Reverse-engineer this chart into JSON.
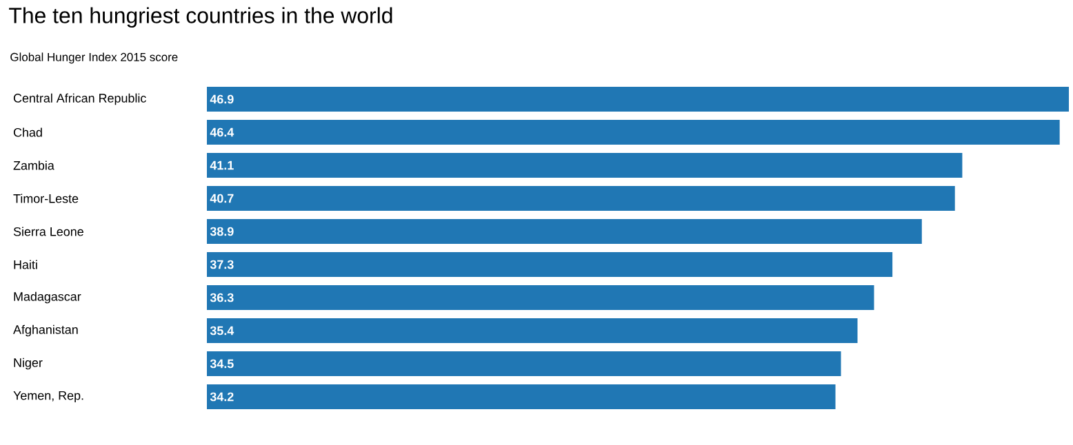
{
  "chart_data": {
    "type": "bar",
    "orientation": "horizontal",
    "title": "The ten hungriest countries in the world",
    "subtitle": "Global Hunger Index 2015 score",
    "categories": [
      "Central African Republic",
      "Chad",
      "Zambia",
      "Timor-Leste",
      "Sierra Leone",
      "Haiti",
      "Madagascar",
      "Afghanistan",
      "Niger",
      "Yemen, Rep."
    ],
    "values": [
      46.9,
      46.4,
      41.1,
      40.7,
      38.9,
      37.3,
      36.3,
      35.4,
      34.5,
      34.2
    ],
    "color": "#2077b4",
    "data_labels": true
  }
}
